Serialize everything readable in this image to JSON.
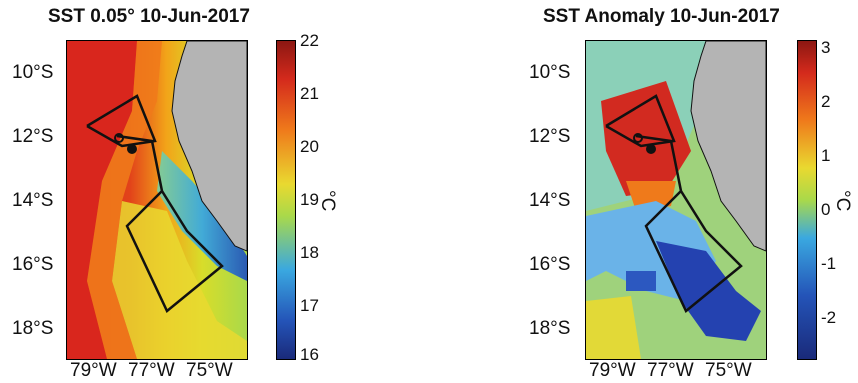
{
  "left_panel": {
    "title": "SST 0.05° 10-Jun-2017",
    "y_labels": [
      "10°S",
      "12°S",
      "14°S",
      "16°S",
      "18°S"
    ],
    "x_labels": [
      "79°W",
      "77°W",
      "75°W"
    ],
    "colorbar": {
      "ticks": [
        "22",
        "21",
        "20",
        "19",
        "18",
        "17",
        "16"
      ],
      "unit": "°C",
      "range": [
        16,
        22
      ]
    }
  },
  "right_panel": {
    "title": "SST Anomaly 10-Jun-2017",
    "y_labels": [
      "10°S",
      "12°S",
      "14°S",
      "16°S",
      "18°S"
    ],
    "x_labels": [
      "79°W",
      "77°W",
      "75°W"
    ],
    "colorbar": {
      "ticks": [
        "3",
        "2",
        "1",
        "0",
        "-1",
        "-2"
      ],
      "unit": "°C",
      "range": [
        -3,
        3
      ]
    }
  },
  "colors": {
    "land": "#b4b4b4",
    "outline": "#111111",
    "sst_warm": "#d7261e",
    "sst_cold": "#1f3d9c",
    "anomaly_warm": "#c8141e",
    "anomaly_cold": "#1e3ca8"
  }
}
